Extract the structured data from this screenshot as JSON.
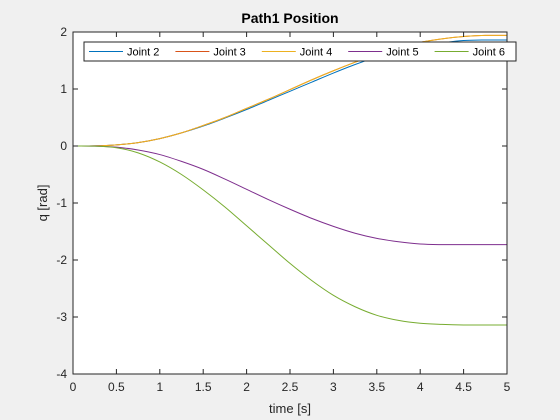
{
  "chart_data": {
    "type": "line",
    "title": "Path1 Position",
    "xlabel": "time [s]",
    "ylabel": "q [rad]",
    "xlim": [
      0,
      5
    ],
    "ylim": [
      -4,
      2
    ],
    "xticks": [
      "0",
      "0.5",
      "1",
      "1.5",
      "2",
      "2.5",
      "3",
      "3.5",
      "4",
      "4.5",
      "5"
    ],
    "yticks": [
      "-4",
      "-3",
      "-2",
      "-1",
      "0",
      "1",
      "2"
    ],
    "legend_placement": "top",
    "grid": false,
    "x": [
      0,
      0.25,
      0.5,
      0.75,
      1,
      1.25,
      1.5,
      1.75,
      2,
      2.25,
      2.5,
      2.75,
      3,
      3.25,
      3.5,
      3.75,
      4,
      4.25,
      4.5,
      4.75,
      5
    ],
    "series": [
      {
        "name": "Joint 2",
        "color": "#0072BD",
        "values": [
          0,
          0.002,
          0.02,
          0.06,
          0.13,
          0.23,
          0.35,
          0.49,
          0.64,
          0.8,
          0.96,
          1.12,
          1.28,
          1.43,
          1.56,
          1.67,
          1.76,
          1.81,
          1.85,
          1.86,
          1.86
        ]
      },
      {
        "name": "Joint 3",
        "color": "#D95319",
        "values": [
          0,
          0.002,
          0.02,
          0.06,
          0.13,
          0.23,
          0.36,
          0.5,
          0.66,
          0.82,
          0.99,
          1.16,
          1.32,
          1.47,
          1.61,
          1.73,
          1.82,
          1.88,
          1.92,
          1.94,
          1.94
        ]
      },
      {
        "name": "Joint 4",
        "color": "#EDB120",
        "values": [
          0,
          0.002,
          0.02,
          0.06,
          0.13,
          0.23,
          0.36,
          0.5,
          0.66,
          0.82,
          0.99,
          1.16,
          1.32,
          1.47,
          1.61,
          1.73,
          1.82,
          1.88,
          1.92,
          1.94,
          1.94
        ]
      },
      {
        "name": "Joint 5",
        "color": "#7E2F8E",
        "values": [
          0,
          -0.002,
          -0.02,
          -0.07,
          -0.15,
          -0.27,
          -0.41,
          -0.58,
          -0.76,
          -0.94,
          -1.11,
          -1.27,
          -1.41,
          -1.53,
          -1.62,
          -1.68,
          -1.72,
          -1.73,
          -1.73,
          -1.73,
          -1.73
        ]
      },
      {
        "name": "Joint 6",
        "color": "#77AC30",
        "values": [
          0,
          -0.003,
          -0.03,
          -0.12,
          -0.28,
          -0.5,
          -0.77,
          -1.07,
          -1.4,
          -1.73,
          -2.06,
          -2.36,
          -2.62,
          -2.82,
          -2.97,
          -3.06,
          -3.11,
          -3.13,
          -3.14,
          -3.14,
          -3.14
        ]
      }
    ]
  }
}
